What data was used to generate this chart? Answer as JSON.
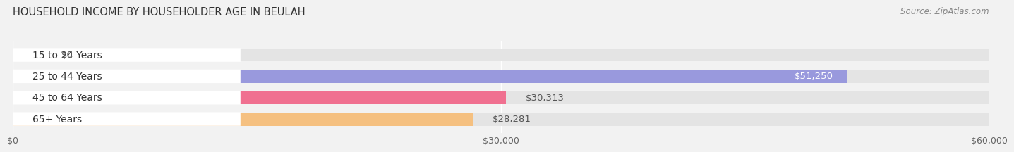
{
  "title": "HOUSEHOLD INCOME BY HOUSEHOLDER AGE IN BEULAH",
  "source": "Source: ZipAtlas.com",
  "categories": [
    "15 to 24 Years",
    "25 to 44 Years",
    "45 to 64 Years",
    "65+ Years"
  ],
  "values": [
    0,
    51250,
    30313,
    28281
  ],
  "bar_colors": [
    "#5ecfcf",
    "#9999dd",
    "#f07090",
    "#f5c080"
  ],
  "value_labels": [
    "$0",
    "$51,250",
    "$30,313",
    "$28,281"
  ],
  "xlim": [
    0,
    60000
  ],
  "xticks": [
    0,
    30000,
    60000
  ],
  "xticklabels": [
    "$0",
    "$30,000",
    "$60,000"
  ],
  "bar_height": 0.62,
  "background_color": "#f2f2f2",
  "bar_bg_color": "#e4e4e4",
  "label_bg_color": "#ffffff",
  "title_fontsize": 10.5,
  "label_fontsize": 10,
  "value_fontsize": 9.5,
  "tick_fontsize": 9,
  "source_fontsize": 8.5
}
